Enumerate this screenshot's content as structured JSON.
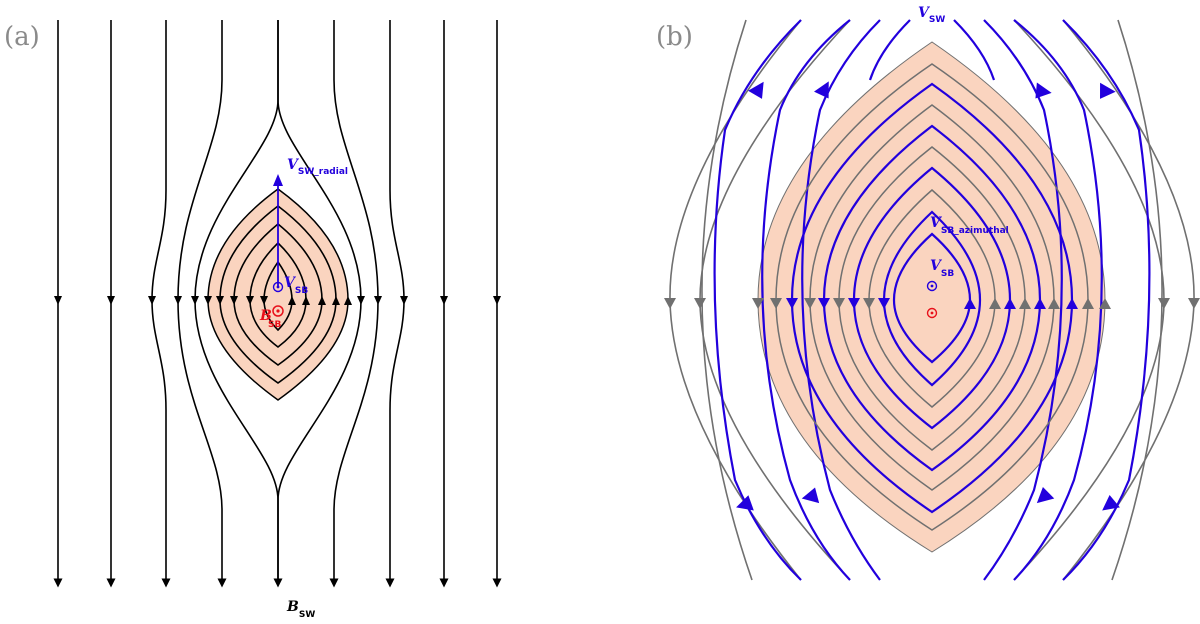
{
  "panels": [
    {
      "label": "(a)",
      "labels": {
        "v_radial": {
          "sym": "V",
          "sub": "SW_radial"
        },
        "v_sb": {
          "sym": "V",
          "sub": "SB"
        },
        "b_sb": {
          "sym": "B",
          "sub": "SB"
        },
        "b_sw": {
          "sym": "B",
          "sub": "SW"
        }
      }
    },
    {
      "label": "(b)",
      "labels": {
        "v_sw": {
          "sym": "V",
          "sub": "SW"
        },
        "v_azimuthal": {
          "sym": "V",
          "sub": "SB_azimuthal"
        },
        "v_sb": {
          "sym": "V",
          "sub": "SB"
        }
      }
    }
  ],
  "colors": {
    "region_fill": "#fad4bf",
    "field_line": "#000000",
    "flow_line": "#2200dd",
    "gray_line": "#707070",
    "red_marker": "#e8101a",
    "blue_marker": "#2200dd",
    "label_blue": "#2200dd",
    "label_red": "#e8101a"
  }
}
